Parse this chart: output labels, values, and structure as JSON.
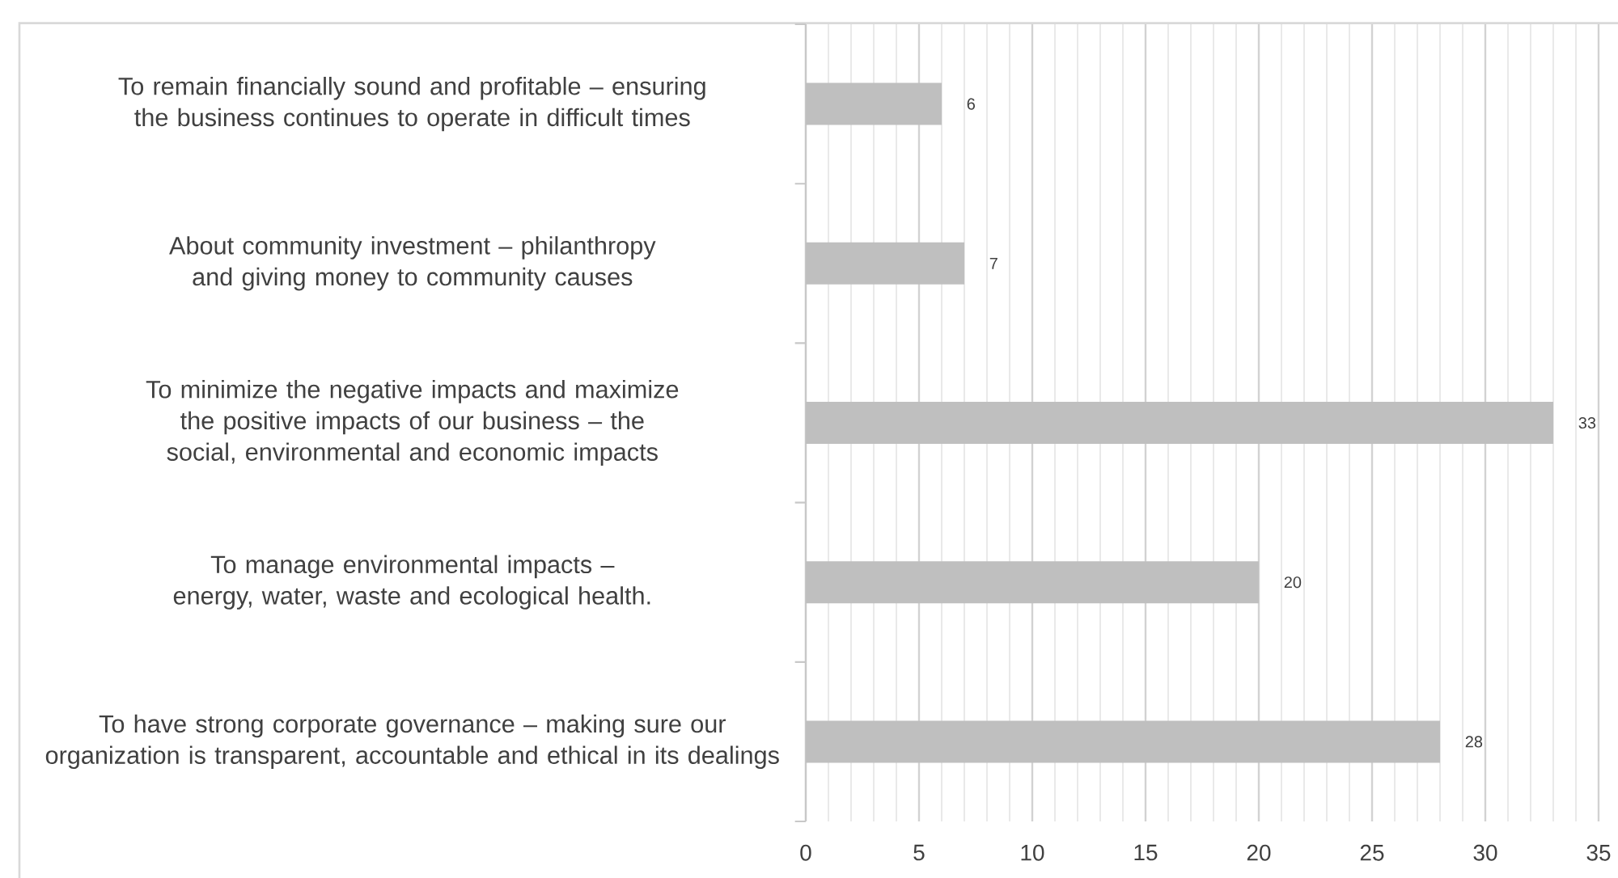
{
  "chart_data": {
    "type": "bar",
    "orientation": "horizontal",
    "categories": [
      "To remain financially sound and profitable – ensuring the business continues to operate in difficult times",
      "About community investment – philanthropy and giving money to community causes",
      "To minimize the negative impacts and maximize the positive impacts of our business – the social, environmental and economic impacts",
      "To manage environmental impacts – energy, water, waste and ecological health.",
      "To have strong corporate governance – making sure our organization is transparent, accountable and ethical in its dealings"
    ],
    "values": [
      6,
      7,
      33,
      20,
      28
    ],
    "color": "#bfbfbf",
    "xlim": [
      0,
      35
    ],
    "xticks": [
      0,
      5,
      10,
      15,
      20,
      25,
      30,
      35
    ],
    "grid": "x",
    "data_labels": true
  }
}
